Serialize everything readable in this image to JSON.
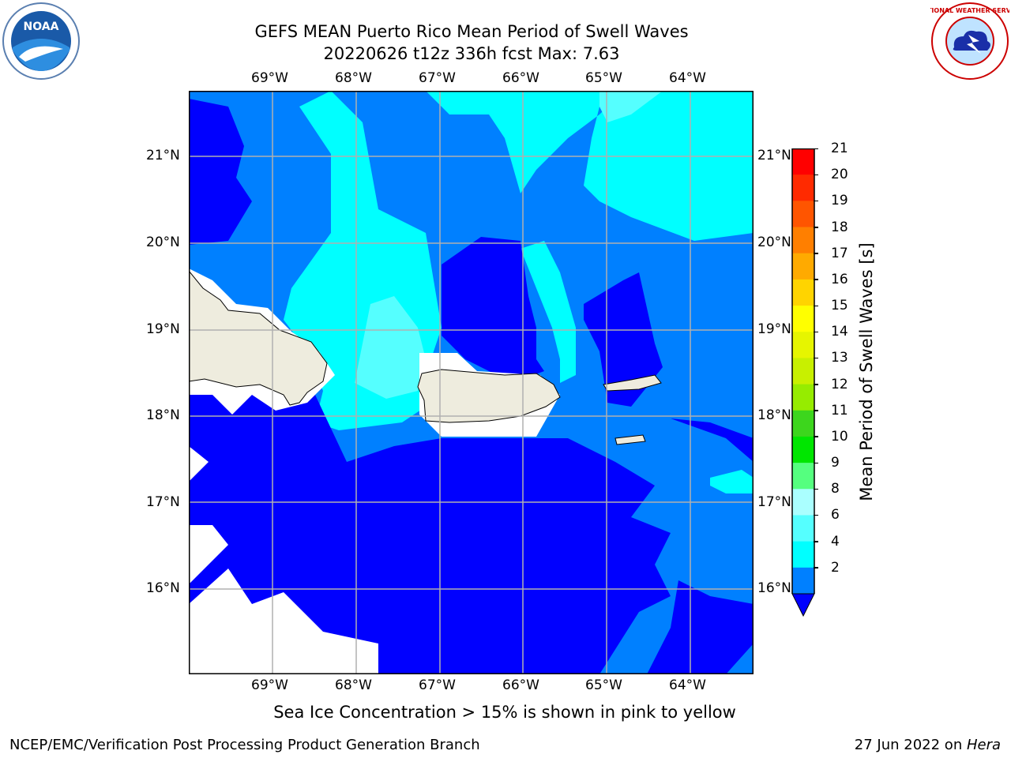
{
  "title_line1": "GEFS MEAN Puerto Rico Mean Period of Swell Waves",
  "title_line2": "20220626 t12z 336h fcst   Max: 7.63",
  "logos": {
    "left": "noaa-logo",
    "left_text": "NOAA",
    "right": "nws-logo",
    "right_text": "NATIONAL WEATHER SERVICE"
  },
  "map": {
    "lon_labels": [
      "69°W",
      "68°W",
      "67°W",
      "66°W",
      "65°W",
      "64°W"
    ],
    "lat_labels": [
      "21°N",
      "20°N",
      "19°N",
      "18°N",
      "17°N",
      "16°N"
    ]
  },
  "colorbar": {
    "label": "Mean Period of Swell Waves [s]",
    "ticks": [
      "21",
      "20",
      "19",
      "18",
      "17",
      "16",
      "15",
      "14",
      "13",
      "12",
      "11",
      "10",
      "9",
      "8",
      "6",
      "4",
      "2"
    ],
    "colors": [
      "#ff0000",
      "#ff2a00",
      "#ff5500",
      "#ff7f00",
      "#ffaa00",
      "#ffd400",
      "#ffff00",
      "#e6f500",
      "#c8f000",
      "#96ec00",
      "#3dd61d",
      "#00e600",
      "#55ff7f",
      "#aaffff",
      "#55ffff",
      "#00ffff",
      "#0080ff",
      "#0000ff"
    ]
  },
  "note": "Sea Ice Concentration > 15% is shown in pink to yellow",
  "footer_left": "NCEP/EMC/Verification Post Processing Product Generation Branch",
  "footer_right_prefix": "27 Jun 2022 on ",
  "footer_right_host": "Hera"
}
